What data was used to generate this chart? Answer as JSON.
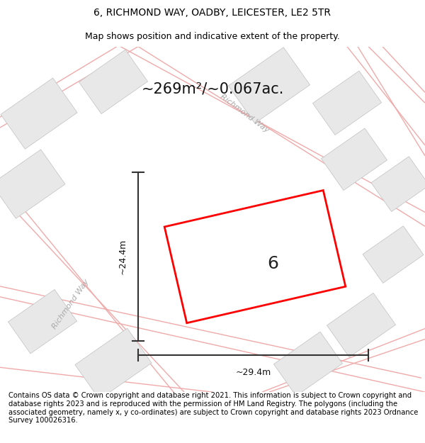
{
  "title": "6, RICHMOND WAY, OADBY, LEICESTER, LE2 5TR",
  "subtitle": "Map shows position and indicative extent of the property.",
  "footer": "Contains OS data © Crown copyright and database right 2021. This information is subject to Crown copyright and database rights 2023 and is reproduced with the permission of HM Land Registry. The polygons (including the associated geometry, namely x, y co-ordinates) are subject to Crown copyright and database rights 2023 Ordnance Survey 100026316.",
  "area_text": "~269m²/~0.067ac.",
  "width_label": "~29.4m",
  "height_label": "~24.4m",
  "plot_number": "6",
  "red_color": "#ff0000",
  "building_face_color": "#e8e8e8",
  "building_edge_color": "#c0c0c0",
  "road_line_color": "#f0aaaa",
  "map_bg_color": "#f9f9f9",
  "title_fontsize": 10,
  "subtitle_fontsize": 9,
  "footer_fontsize": 7.2,
  "area_fontsize": 15,
  "label_fontsize": 9,
  "plot_number_fontsize": 18
}
